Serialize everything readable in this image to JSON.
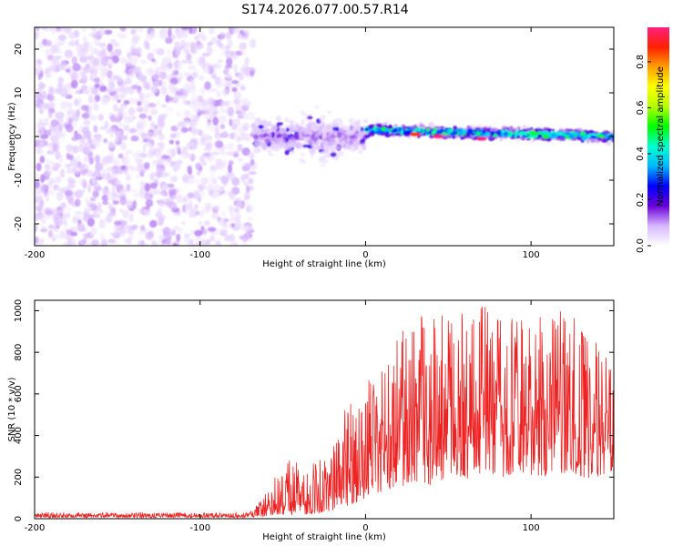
{
  "title": "S174.2026.077.00.57.R14",
  "colors": {
    "signal": "#ee2222",
    "axis": "#000000",
    "background": "#ffffff"
  },
  "chart_data": [
    {
      "type": "heatmap",
      "name": "spectrogram",
      "xlabel": "Height of straight line (km)",
      "ylabel": "Frequency (Hz)",
      "xlim": [
        -200,
        150
      ],
      "ylim": [
        -25,
        25
      ],
      "xticks": [
        -200,
        -100,
        0,
        100
      ],
      "yticks": [
        -20,
        -10,
        0,
        10,
        20
      ],
      "colorbar": {
        "label": "Normalized spectral amplitude",
        "range": [
          0,
          0.95
        ],
        "ticks": [
          0.0,
          0.2,
          0.4,
          0.6,
          0.8
        ],
        "colormap": [
          "#ffffff",
          "#d7b7ff",
          "#6a00d8",
          "#0000ff",
          "#00b7ff",
          "#00ffd0",
          "#00ff00",
          "#b4ff00",
          "#ffff00",
          "#ffa000",
          "#ff2000",
          "#ff2080"
        ]
      },
      "regions": [
        {
          "x_range": [
            -200,
            -68
          ],
          "description_amplitude": 0.15,
          "kind": "broadband noise across all frequencies"
        },
        {
          "x_range": [
            -68,
            0
          ],
          "center_hz": 0,
          "spread_hz": 3,
          "description_amplitude": 0.25
        },
        {
          "x_range": [
            0,
            150
          ],
          "center_hz_start": 1.5,
          "center_hz_end": 0,
          "spread_hz": 1.2,
          "description_amplitude": 0.5
        }
      ],
      "peaks": [
        {
          "x": 30,
          "y": 0.5,
          "amplitude": 0.85
        },
        {
          "x": 44,
          "y": 0,
          "amplitude": 0.95
        },
        {
          "x": 70,
          "y": -0.5,
          "amplitude": 0.95
        }
      ]
    },
    {
      "type": "line",
      "name": "snr",
      "xlabel": "Height of straight line (km)",
      "ylabel": "SNR (10 * v/v)",
      "xlim": [
        -200,
        150
      ],
      "ylim": [
        0,
        1050
      ],
      "xticks": [
        -200,
        -100,
        0,
        100
      ],
      "yticks": [
        0,
        200,
        400,
        600,
        800,
        1000
      ],
      "series": [
        {
          "name": "SNR",
          "color": "#ee2222",
          "x": [
            -200,
            -150,
            -100,
            -70,
            -62,
            -55,
            -45,
            -35,
            -25,
            -15,
            -5,
            0,
            10,
            20,
            30,
            40,
            50,
            60,
            70,
            80,
            90,
            100,
            110,
            120,
            130,
            140,
            150
          ],
          "envelope_max": [
            30,
            30,
            30,
            30,
            100,
            200,
            300,
            250,
            300,
            500,
            600,
            650,
            750,
            900,
            960,
            1020,
            960,
            1000,
            1030,
            1000,
            960,
            1000,
            950,
            1020,
            1000,
            900,
            750
          ],
          "envelope_min": [
            5,
            5,
            5,
            5,
            10,
            20,
            20,
            20,
            30,
            50,
            80,
            100,
            130,
            150,
            180,
            160,
            200,
            180,
            220,
            200,
            180,
            210,
            200,
            220,
            200,
            190,
            230
          ]
        }
      ]
    }
  ]
}
